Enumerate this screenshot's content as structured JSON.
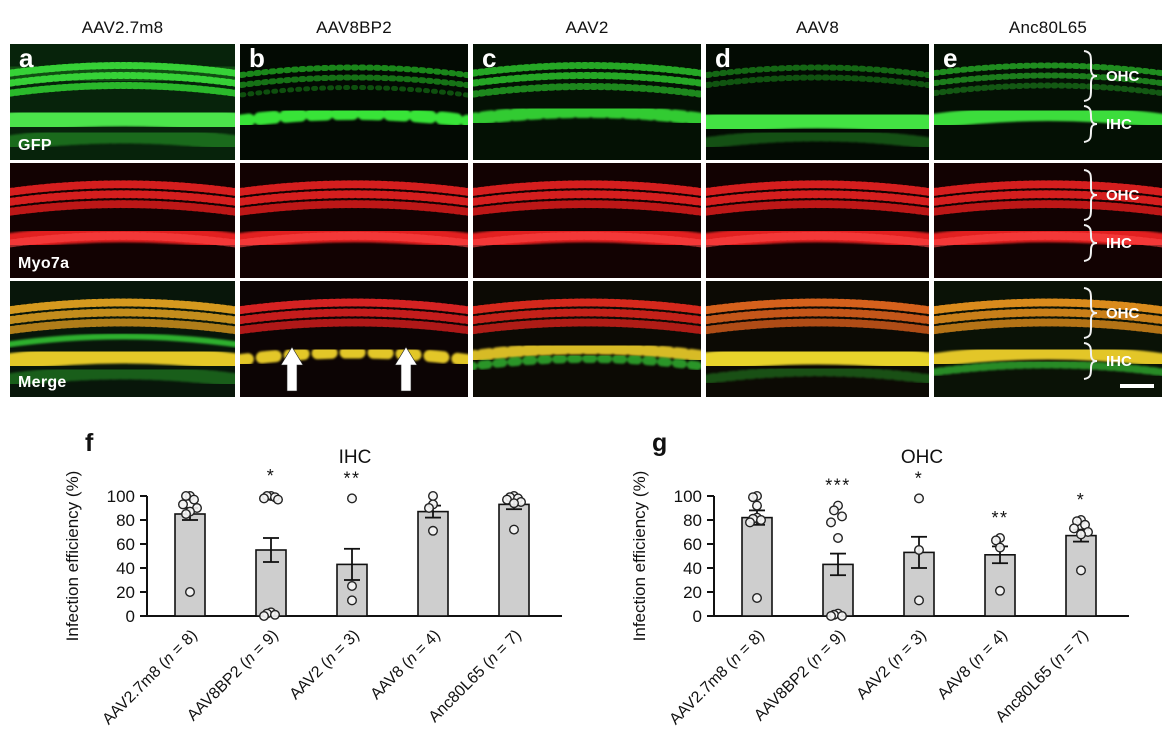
{
  "figure": {
    "columns": [
      {
        "letter": "a",
        "virus": "AAV2.7m8"
      },
      {
        "letter": "b",
        "virus": "AAV8BP2"
      },
      {
        "letter": "c",
        "virus": "AAV2"
      },
      {
        "letter": "d",
        "virus": "AAV8"
      },
      {
        "letter": "e",
        "virus": "Anc80L65"
      }
    ],
    "row_labels": [
      "GFP",
      "Myo7a",
      "Merge"
    ],
    "region_labels": {
      "ohc": "OHC",
      "ihc": "IHC"
    }
  },
  "chart_data": [
    {
      "type": "bar",
      "panel": "f",
      "title": "IHC",
      "ylabel": "Infection efficiency (%)",
      "ylim": [
        0,
        100
      ],
      "yticks": [
        0,
        20,
        40,
        60,
        80,
        100
      ],
      "categories": [
        "AAV2.7m8 (n = 8)",
        "AAV8BP2 (n = 9)",
        "AAV2 (n = 3)",
        "AAV8 (n = 4)",
        "Anc80L65 (n = 7)"
      ],
      "values": [
        85,
        55,
        43,
        87,
        93
      ],
      "errors": [
        5,
        10,
        13,
        5,
        4
      ],
      "significance": [
        "",
        "*",
        "**",
        "",
        ""
      ],
      "points": [
        [
          100,
          100,
          97,
          93,
          90,
          87,
          85,
          20
        ],
        [
          100,
          100,
          99,
          98,
          97,
          3,
          2,
          1,
          0
        ],
        [
          98,
          25,
          13
        ],
        [
          100,
          93,
          90,
          71
        ],
        [
          100,
          99,
          98,
          97,
          95,
          94,
          72
        ]
      ],
      "legend": "none",
      "grid": false
    },
    {
      "type": "bar",
      "panel": "g",
      "title": "OHC",
      "ylabel": "Infection efficiency (%)",
      "ylim": [
        0,
        100
      ],
      "yticks": [
        0,
        20,
        40,
        60,
        80,
        100
      ],
      "categories": [
        "AAV2.7m8 (n = 8)",
        "AAV8BP2 (n = 9)",
        "AAV2 (n = 3)",
        "AAV8 (n = 4)",
        "Anc80L65 (n = 7)"
      ],
      "values": [
        82,
        43,
        53,
        51,
        67
      ],
      "errors": [
        6,
        9,
        13,
        7,
        5
      ],
      "significance": [
        "",
        "***",
        "*",
        "**",
        "*"
      ],
      "points": [
        [
          100,
          99,
          92,
          82,
          81,
          80,
          78,
          15
        ],
        [
          92,
          88,
          83,
          78,
          65,
          2,
          1,
          0,
          0
        ],
        [
          98,
          55,
          13
        ],
        [
          65,
          63,
          57,
          21
        ],
        [
          80,
          79,
          76,
          73,
          70,
          68,
          38
        ]
      ],
      "legend": "none",
      "grid": false
    }
  ]
}
